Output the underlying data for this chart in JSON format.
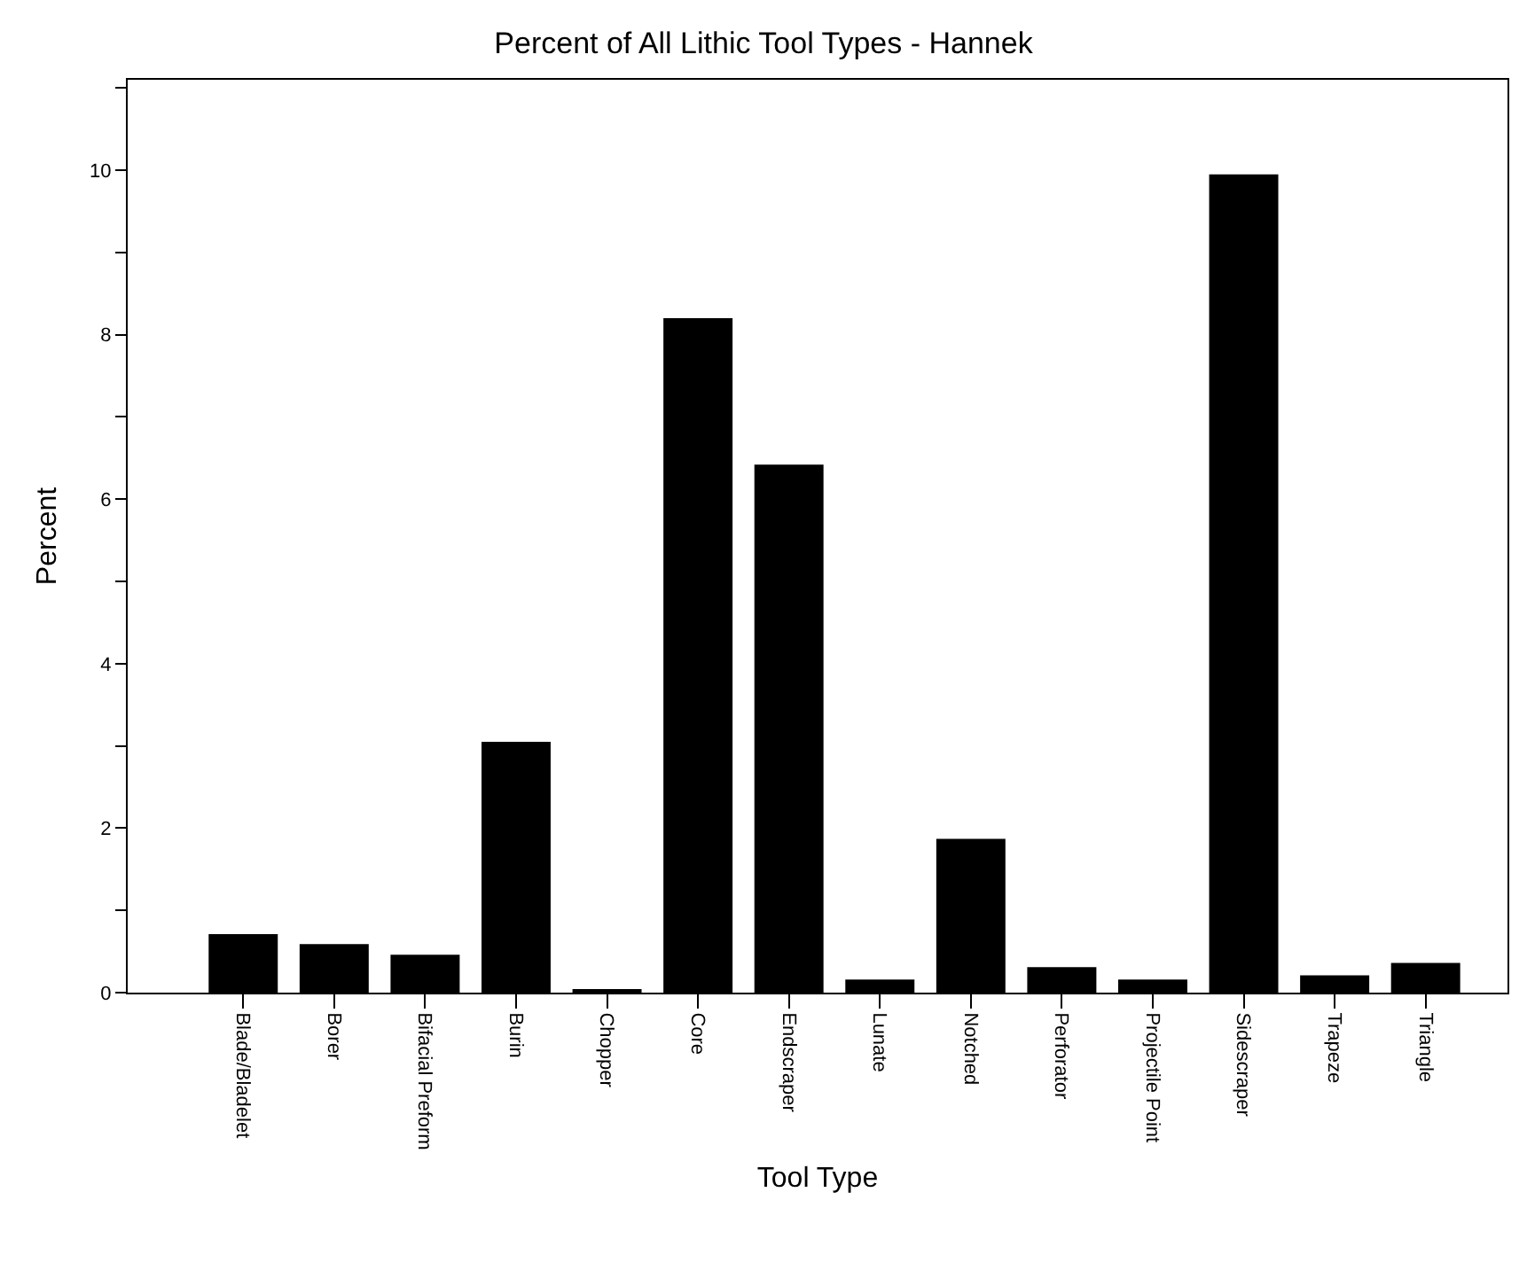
{
  "chart_data": {
    "type": "bar",
    "title": "Percent of All Lithic Tool Types - Hannek",
    "xlabel": "Tool Type",
    "ylabel": "Percent",
    "categories": [
      "Blade/Bladelet",
      "Borer",
      "Bifacial Preform",
      "Burin",
      "Chopper",
      "Core",
      "Endscraper",
      "Lunate",
      "Notched",
      "Perforator",
      "Projectile Point",
      "Sidescraper",
      "Trapeze",
      "Triangle"
    ],
    "values": [
      0.71,
      0.59,
      0.46,
      3.05,
      0.04,
      8.2,
      6.42,
      0.16,
      1.87,
      0.31,
      0.16,
      9.95,
      0.21,
      0.36
    ],
    "color": "#000000",
    "ylim": [
      0,
      11.1
    ],
    "yticks": [
      0,
      {
        "value": 1,
        "label": null
      },
      2,
      {
        "value": 3,
        "label": null
      },
      4,
      {
        "value": 5,
        "label": null
      },
      6,
      {
        "value": 7,
        "label": null
      },
      8,
      {
        "value": 9,
        "label": null
      },
      10,
      {
        "value": 11,
        "label": null
      }
    ],
    "grid": false
  }
}
